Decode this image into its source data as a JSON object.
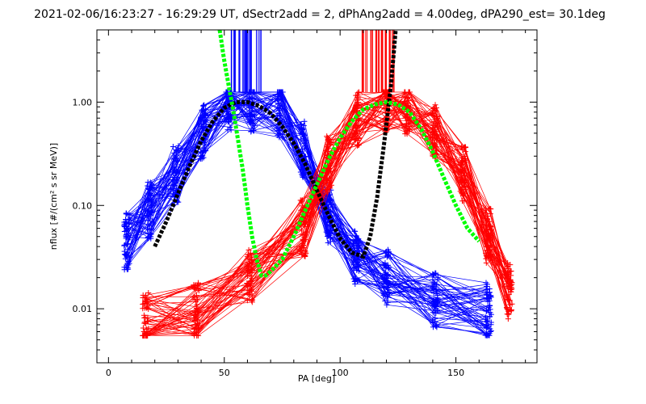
{
  "colors": {
    "background": "#ffffff",
    "axis": "#000000",
    "blue_series": "#0000ff",
    "red_series": "#ff0000",
    "fit_black": "#000000",
    "fit_green": "#00ff00"
  },
  "chart_data": {
    "type": "line",
    "title": "2021-02-06/16:23:27 - 16:29:29 UT, dSectr2add = 2, dPhAng2add = 4.00deg, dPA290_est=  30.1deg",
    "xlabel": "PA [deg]",
    "ylabel": "nflux [#/(cm² s sr MeV)]",
    "xlim": [
      -5,
      185
    ],
    "ylim": [
      0.003,
      5
    ],
    "yscale": "log",
    "x_ticks": [
      0,
      50,
      100,
      150
    ],
    "x_tick_labels": [
      "0",
      "50",
      "100",
      "150"
    ],
    "y_ticks": [
      0.01,
      0.1,
      1
    ],
    "y_tick_labels": [
      "0.01",
      "0.10",
      "1.00"
    ],
    "grid": false,
    "legend": "none",
    "series": [
      {
        "color": "blue",
        "marker": "+",
        "note_visual": "many normalized PA distributions",
        "representative_x": [
          8,
          18,
          29,
          41,
          52,
          62,
          74,
          84,
          95,
          107,
          120,
          141,
          164
        ],
        "representative_y": [
          0.045,
          0.09,
          0.2,
          0.5,
          1.0,
          0.95,
          0.85,
          0.35,
          0.08,
          0.03,
          0.02,
          0.012,
          0.01
        ]
      },
      {
        "color": "red",
        "marker": "+",
        "note_visual": "many normalized PA distributions",
        "representative_x": [
          16,
          38,
          61,
          84,
          95,
          107,
          120,
          129,
          141,
          153,
          164,
          173
        ],
        "representative_y": [
          0.008,
          0.01,
          0.02,
          0.06,
          0.25,
          0.7,
          0.95,
          0.9,
          0.5,
          0.2,
          0.05,
          0.015
        ]
      },
      {
        "color": "black",
        "style": "dashed thick",
        "x": [
          20,
          25,
          30,
          35,
          40,
          45,
          50,
          55,
          60,
          65,
          70,
          75,
          80,
          85,
          90,
          95,
          100,
          105,
          110,
          113,
          116,
          119,
          122,
          124
        ],
        "y": [
          0.04,
          0.07,
          0.13,
          0.24,
          0.42,
          0.65,
          0.88,
          1.0,
          1.0,
          0.92,
          0.78,
          0.58,
          0.4,
          0.25,
          0.14,
          0.08,
          0.048,
          0.035,
          0.032,
          0.05,
          0.12,
          0.4,
          1.5,
          5
        ]
      },
      {
        "color": "green",
        "style": "dashed thick",
        "x": [
          48,
          50,
          52,
          54,
          56,
          58,
          60,
          62,
          64,
          66,
          68,
          70,
          75,
          80,
          85,
          90,
          95,
          100,
          105,
          110,
          115,
          120,
          125,
          130,
          135,
          140,
          145,
          150,
          155,
          160
        ],
        "y": [
          5,
          2.5,
          1.4,
          0.8,
          0.42,
          0.22,
          0.1,
          0.05,
          0.03,
          0.021,
          0.021,
          0.023,
          0.03,
          0.05,
          0.09,
          0.16,
          0.28,
          0.45,
          0.65,
          0.85,
          0.95,
          1.0,
          0.95,
          0.8,
          0.55,
          0.33,
          0.18,
          0.1,
          0.06,
          0.045
        ]
      }
    ]
  }
}
